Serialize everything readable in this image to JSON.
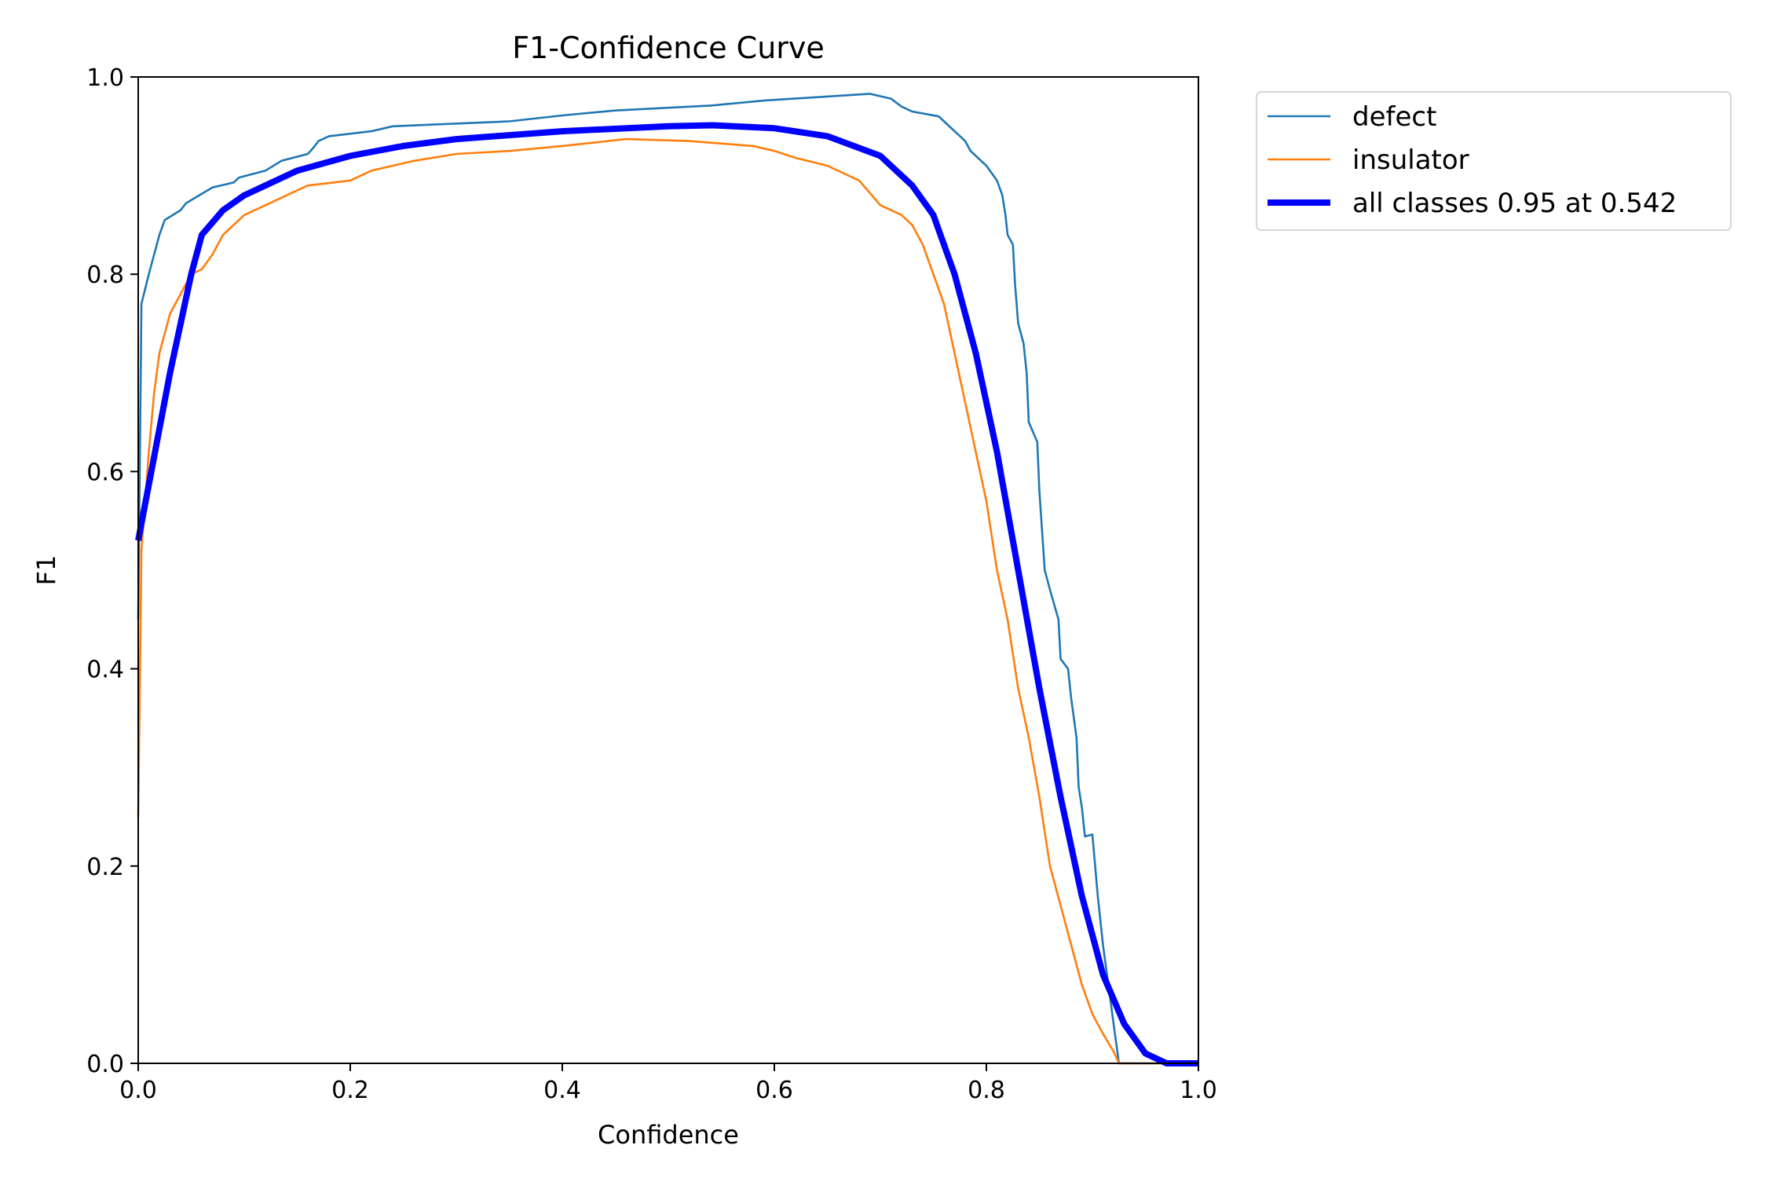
{
  "chart_data": {
    "type": "line",
    "title": "F1-Confidence Curve",
    "xlabel": "Confidence",
    "ylabel": "F1",
    "xlim": [
      0,
      1
    ],
    "ylim": [
      0,
      1
    ],
    "xticks": [
      "0.0",
      "0.2",
      "0.4",
      "0.6",
      "0.8",
      "1.0"
    ],
    "yticks": [
      "0.0",
      "0.2",
      "0.4",
      "0.6",
      "0.8",
      "1.0"
    ],
    "grid": false,
    "legend_position": "outside-top-right",
    "series": [
      {
        "name": "defect",
        "color": "#1f77b4",
        "x": [
          0,
          0.003,
          0.01,
          0.02,
          0.025,
          0.04,
          0.045,
          0.07,
          0.09,
          0.095,
          0.12,
          0.135,
          0.16,
          0.165,
          0.17,
          0.18,
          0.22,
          0.24,
          0.35,
          0.4,
          0.45,
          0.54,
          0.59,
          0.69,
          0.71,
          0.72,
          0.73,
          0.755,
          0.76,
          0.77,
          0.78,
          0.785,
          0.8,
          0.81,
          0.815,
          0.818,
          0.82,
          0.825,
          0.827,
          0.83,
          0.835,
          0.838,
          0.84,
          0.848,
          0.85,
          0.855,
          0.86,
          0.868,
          0.87,
          0.877,
          0.88,
          0.885,
          0.887,
          0.89,
          0.893,
          0.9,
          0.905,
          0.91,
          0.915,
          0.92,
          0.925,
          1.0
        ],
        "y": [
          0.45,
          0.77,
          0.8,
          0.84,
          0.855,
          0.865,
          0.872,
          0.888,
          0.893,
          0.898,
          0.905,
          0.915,
          0.922,
          0.928,
          0.935,
          0.94,
          0.945,
          0.95,
          0.955,
          0.961,
          0.966,
          0.971,
          0.976,
          0.983,
          0.978,
          0.97,
          0.965,
          0.96,
          0.955,
          0.945,
          0.935,
          0.925,
          0.91,
          0.895,
          0.88,
          0.86,
          0.84,
          0.83,
          0.79,
          0.75,
          0.73,
          0.7,
          0.65,
          0.63,
          0.58,
          0.5,
          0.48,
          0.45,
          0.41,
          0.4,
          0.37,
          0.33,
          0.28,
          0.26,
          0.23,
          0.232,
          0.17,
          0.12,
          0.08,
          0.04,
          0.0,
          0.0
        ]
      },
      {
        "name": "insulator",
        "color": "#ff7f0e",
        "x": [
          0,
          0.003,
          0.01,
          0.015,
          0.02,
          0.03,
          0.04,
          0.05,
          0.06,
          0.07,
          0.08,
          0.1,
          0.12,
          0.14,
          0.16,
          0.2,
          0.22,
          0.26,
          0.3,
          0.35,
          0.4,
          0.46,
          0.52,
          0.58,
          0.6,
          0.62,
          0.65,
          0.68,
          0.7,
          0.72,
          0.73,
          0.74,
          0.75,
          0.76,
          0.77,
          0.78,
          0.79,
          0.8,
          0.81,
          0.82,
          0.83,
          0.84,
          0.85,
          0.86,
          0.87,
          0.88,
          0.89,
          0.9,
          0.91,
          0.92,
          0.925,
          1.0
        ],
        "y": [
          0.25,
          0.52,
          0.62,
          0.68,
          0.72,
          0.76,
          0.78,
          0.8,
          0.805,
          0.82,
          0.84,
          0.86,
          0.87,
          0.88,
          0.89,
          0.895,
          0.905,
          0.915,
          0.922,
          0.925,
          0.93,
          0.937,
          0.935,
          0.93,
          0.925,
          0.918,
          0.91,
          0.895,
          0.87,
          0.86,
          0.85,
          0.83,
          0.8,
          0.77,
          0.72,
          0.67,
          0.62,
          0.57,
          0.5,
          0.45,
          0.38,
          0.33,
          0.27,
          0.2,
          0.16,
          0.12,
          0.08,
          0.05,
          0.03,
          0.012,
          0.0,
          0.0
        ]
      },
      {
        "name": "all classes 0.95 at 0.542",
        "color": "#0000ff",
        "x": [
          0,
          0.03,
          0.05,
          0.06,
          0.08,
          0.1,
          0.15,
          0.2,
          0.25,
          0.3,
          0.4,
          0.5,
          0.542,
          0.6,
          0.65,
          0.7,
          0.73,
          0.75,
          0.77,
          0.79,
          0.81,
          0.83,
          0.85,
          0.87,
          0.89,
          0.91,
          0.93,
          0.95,
          0.97,
          1.0
        ],
        "y": [
          0.53,
          0.7,
          0.8,
          0.84,
          0.865,
          0.88,
          0.905,
          0.92,
          0.93,
          0.937,
          0.945,
          0.95,
          0.951,
          0.948,
          0.94,
          0.92,
          0.89,
          0.86,
          0.8,
          0.72,
          0.62,
          0.5,
          0.38,
          0.27,
          0.17,
          0.09,
          0.04,
          0.01,
          0.0,
          0.0
        ]
      }
    ]
  }
}
